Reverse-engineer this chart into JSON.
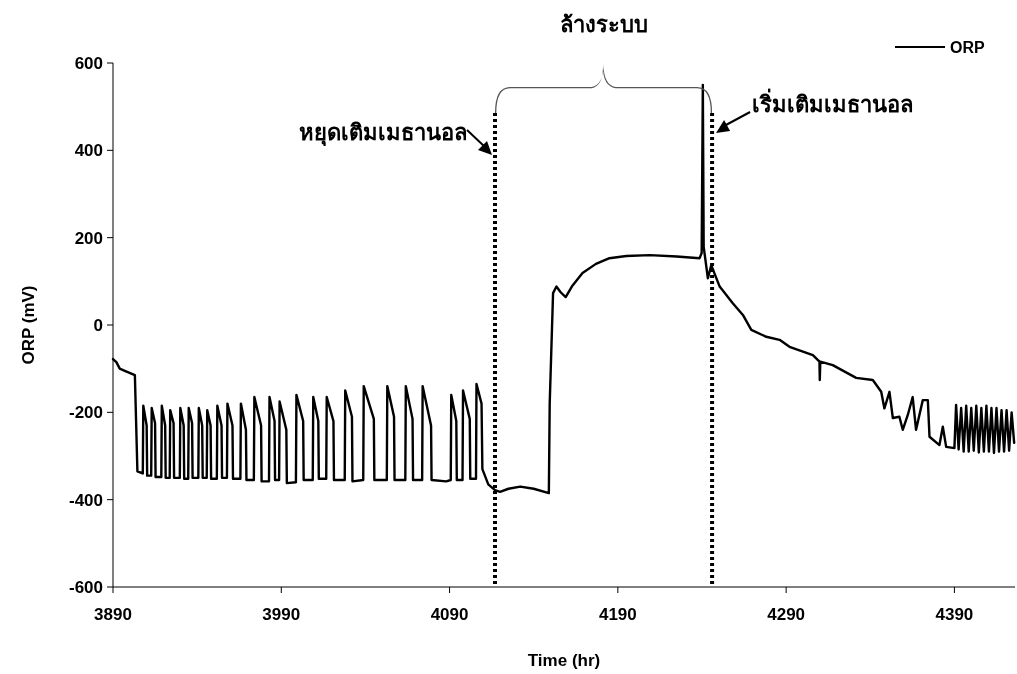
{
  "chart_data": {
    "type": "line",
    "xlabel": "Time (hr)",
    "ylabel": "ORP (mV)",
    "xlim": [
      3890,
      4426
    ],
    "ylim": [
      -600,
      600
    ],
    "xticks": [
      3890,
      3990,
      4090,
      4190,
      4290,
      4390
    ],
    "yticks": [
      -600,
      -400,
      -200,
      0,
      200,
      400,
      600
    ],
    "grid": false,
    "legend": "top right",
    "line_style": "solid",
    "marker": "none",
    "series": [
      {
        "name": "ORP",
        "color": "#000000",
        "x": [
          3890,
          3892,
          3894,
          3897,
          3903,
          3904.5,
          3907.7,
          3908,
          3910,
          3910.3,
          3912.7,
          3913,
          3915,
          3915.3,
          3918.7,
          3919,
          3921,
          3921.3,
          3923.7,
          3924,
          3926,
          3926.3,
          3929.7,
          3930,
          3932,
          3932.3,
          3934.7,
          3935,
          3937,
          3937.3,
          3940.7,
          3941,
          3943,
          3943.3,
          3945.7,
          3946,
          3948,
          3948.3,
          3951.7,
          3952,
          3954.5,
          3954.8,
          3957.7,
          3958,
          3961,
          3961.3,
          3965.7,
          3966,
          3969,
          3969.3,
          3973.7,
          3974,
          3978,
          3978.3,
          3982.7,
          3983,
          3986,
          3986.3,
          3988.7,
          3989,
          3993,
          3993.3,
          3998.7,
          3999,
          4003,
          4003.3,
          4008.7,
          4009,
          4012,
          4012.3,
          4016.7,
          4017,
          4021,
          4021.3,
          4027.7,
          4028,
          4032,
          4032.3,
          4038.7,
          4039,
          4045,
          4045.3,
          4052.7,
          4053,
          4057,
          4057.3,
          4063.7,
          4064,
          4068,
          4068.3,
          4073.7,
          4074,
          4079,
          4079.3,
          4088,
          4090.7,
          4091,
          4094,
          4094.3,
          4097.7,
          4098,
          4102,
          4102.3,
          4105.7,
          4106,
          4109,
          4109.5,
          4113,
          4117,
          4120,
          4125,
          4132,
          4140,
          4149,
          4149.5,
          4151.5,
          4153.5,
          4156,
          4159,
          4163,
          4169,
          4177,
          4185,
          4195,
          4209,
          4225,
          4238.6,
          4239.8,
          4240.5,
          4241,
          4243.5,
          4245.5,
          4250.5,
          4258.3,
          4264.3,
          4269.3,
          4278.2,
          4286.1,
          4292,
          4305.9,
          4309.8,
          4310,
          4310.3,
          4317.7,
          4331.6,
          4341.5,
          4346.5,
          4348.4,
          4351.4,
          4353.4,
          4357.3,
          4359.3,
          4362.3,
          4365.2,
          4367.2,
          4371.2,
          4374.2,
          4375.2,
          4381.1,
          4383.1,
          4385.1,
          4390,
          4391,
          4392.5,
          4394,
          4395.5,
          4397,
          4398.5,
          4400,
          4401.5,
          4403,
          4404.5,
          4406,
          4407.5,
          4409,
          4410.5,
          4412,
          4413.5,
          4415,
          4416.5,
          4418,
          4419.5,
          4421,
          4422.5,
          4424,
          4425.5
        ],
        "values": [
          -78,
          -85,
          -100,
          -105,
          -115,
          -335,
          -340,
          -185,
          -230,
          -345,
          -345,
          -190,
          -225,
          -348,
          -348,
          -185,
          -230,
          -350,
          -350,
          -195,
          -225,
          -350,
          -350,
          -190,
          -230,
          -352,
          -352,
          -190,
          -225,
          -350,
          -350,
          -190,
          -230,
          -350,
          -350,
          -195,
          -230,
          -352,
          -352,
          -185,
          -230,
          -350,
          -350,
          -180,
          -230,
          -352,
          -352,
          -180,
          -240,
          -355,
          -355,
          -165,
          -230,
          -358,
          -358,
          -165,
          -220,
          -355,
          -355,
          -175,
          -240,
          -362,
          -360,
          -160,
          -220,
          -355,
          -355,
          -165,
          -220,
          -352,
          -352,
          -165,
          -220,
          -355,
          -355,
          -150,
          -210,
          -358,
          -355,
          -140,
          -215,
          -355,
          -355,
          -140,
          -210,
          -355,
          -355,
          -140,
          -215,
          -355,
          -355,
          -140,
          -230,
          -355,
          -358,
          -355,
          -160,
          -220,
          -355,
          -355,
          -150,
          -215,
          -352,
          -352,
          -135,
          -180,
          -330,
          -365,
          -378,
          -382,
          -375,
          -370,
          -375,
          -385,
          -180,
          73,
          88,
          75,
          64,
          90,
          119,
          140,
          153,
          158,
          160,
          157,
          153,
          165,
          550,
          179,
          107,
          137,
          88,
          50,
          23,
          -11,
          -27,
          -34,
          -50,
          -69,
          -84,
          -126,
          -84,
          -92,
          -121,
          -126,
          -153,
          -191,
          -153,
          -213,
          -210,
          -240,
          -206,
          -165,
          -240,
          -172,
          -172,
          -256,
          -275,
          -233,
          -279,
          -282,
          -183,
          -285,
          -190,
          -290,
          -185,
          -290,
          -190,
          -288,
          -185,
          -292,
          -190,
          -290,
          -185,
          -290,
          -190,
          -293,
          -190,
          -290,
          -195,
          -290,
          -195,
          -288,
          -200,
          -270
        ]
      }
    ],
    "ref_lines": [
      {
        "axis": "x",
        "value": 4117,
        "label": "หยุดเติมเมธานอล",
        "color": "#000000",
        "line_style": "dotted"
      },
      {
        "axis": "x",
        "value": 4246,
        "label": "เริ่มเติมเมธานอล",
        "color": "#000000",
        "line_style": "dotted"
      }
    ],
    "annotations": [
      "ล้างระบบ"
    ]
  }
}
